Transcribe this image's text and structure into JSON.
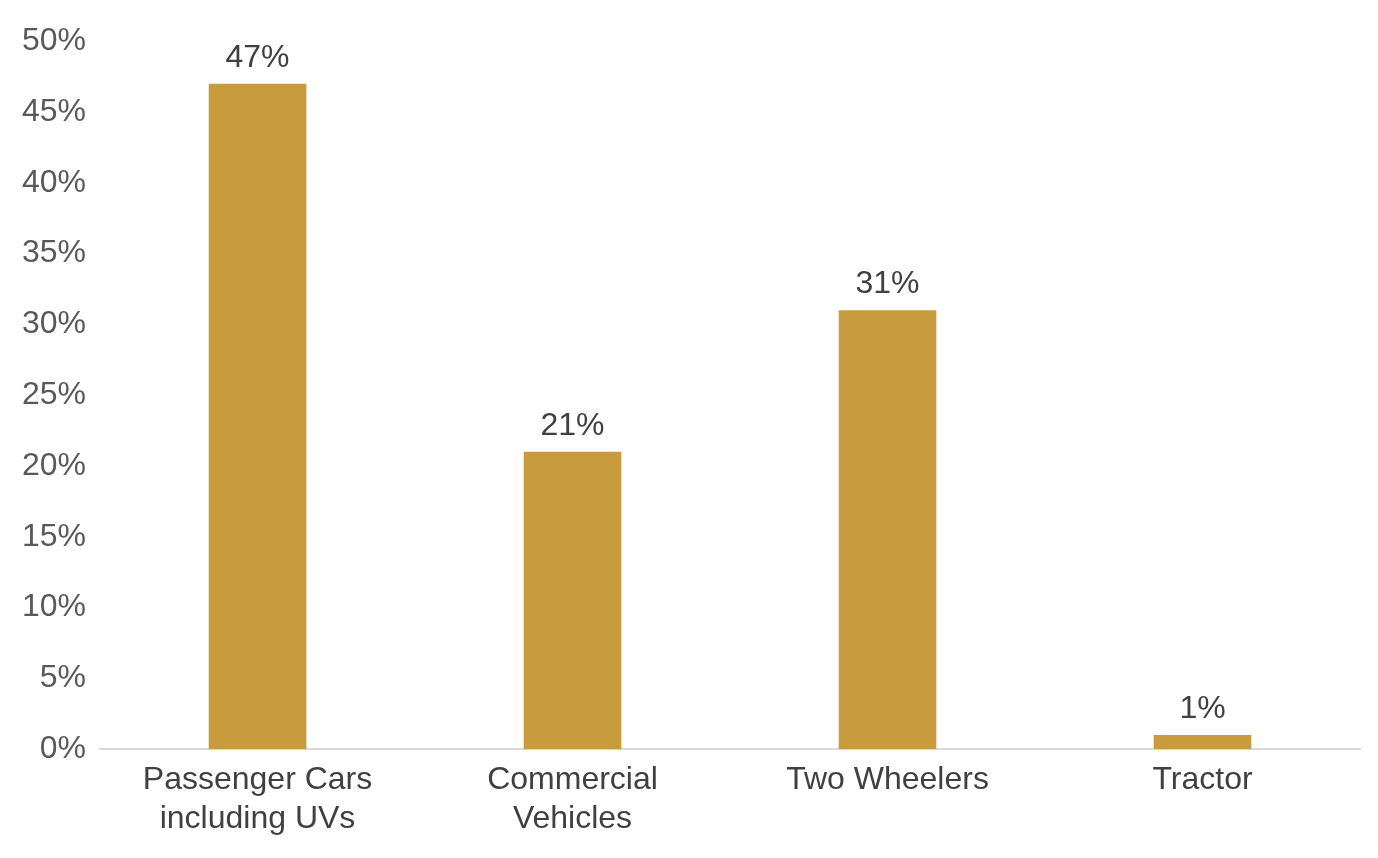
{
  "chart_data": {
    "type": "bar",
    "categories": [
      "Passenger Cars including UVs",
      "Commercial Vehicles",
      "Two Wheelers",
      "Tractor"
    ],
    "values": [
      47,
      21,
      31,
      1
    ],
    "color": "#c89b3c",
    "value_labels": [
      "47%",
      "21%",
      "31%",
      "1%"
    ],
    "ylim": [
      0,
      50
    ],
    "yticks": [
      {
        "value": 0,
        "label": "0%"
      },
      {
        "value": 5,
        "label": "5%"
      },
      {
        "value": 10,
        "label": "10%"
      },
      {
        "value": 15,
        "label": "15%"
      },
      {
        "value": 20,
        "label": "20%"
      },
      {
        "value": 25,
        "label": "25%"
      },
      {
        "value": 30,
        "label": "30%"
      },
      {
        "value": 35,
        "label": "35%"
      },
      {
        "value": 40,
        "label": "40%"
      },
      {
        "value": 45,
        "label": "45%"
      },
      {
        "value": 50,
        "label": "50%"
      }
    ],
    "grid": false,
    "legend": false
  }
}
